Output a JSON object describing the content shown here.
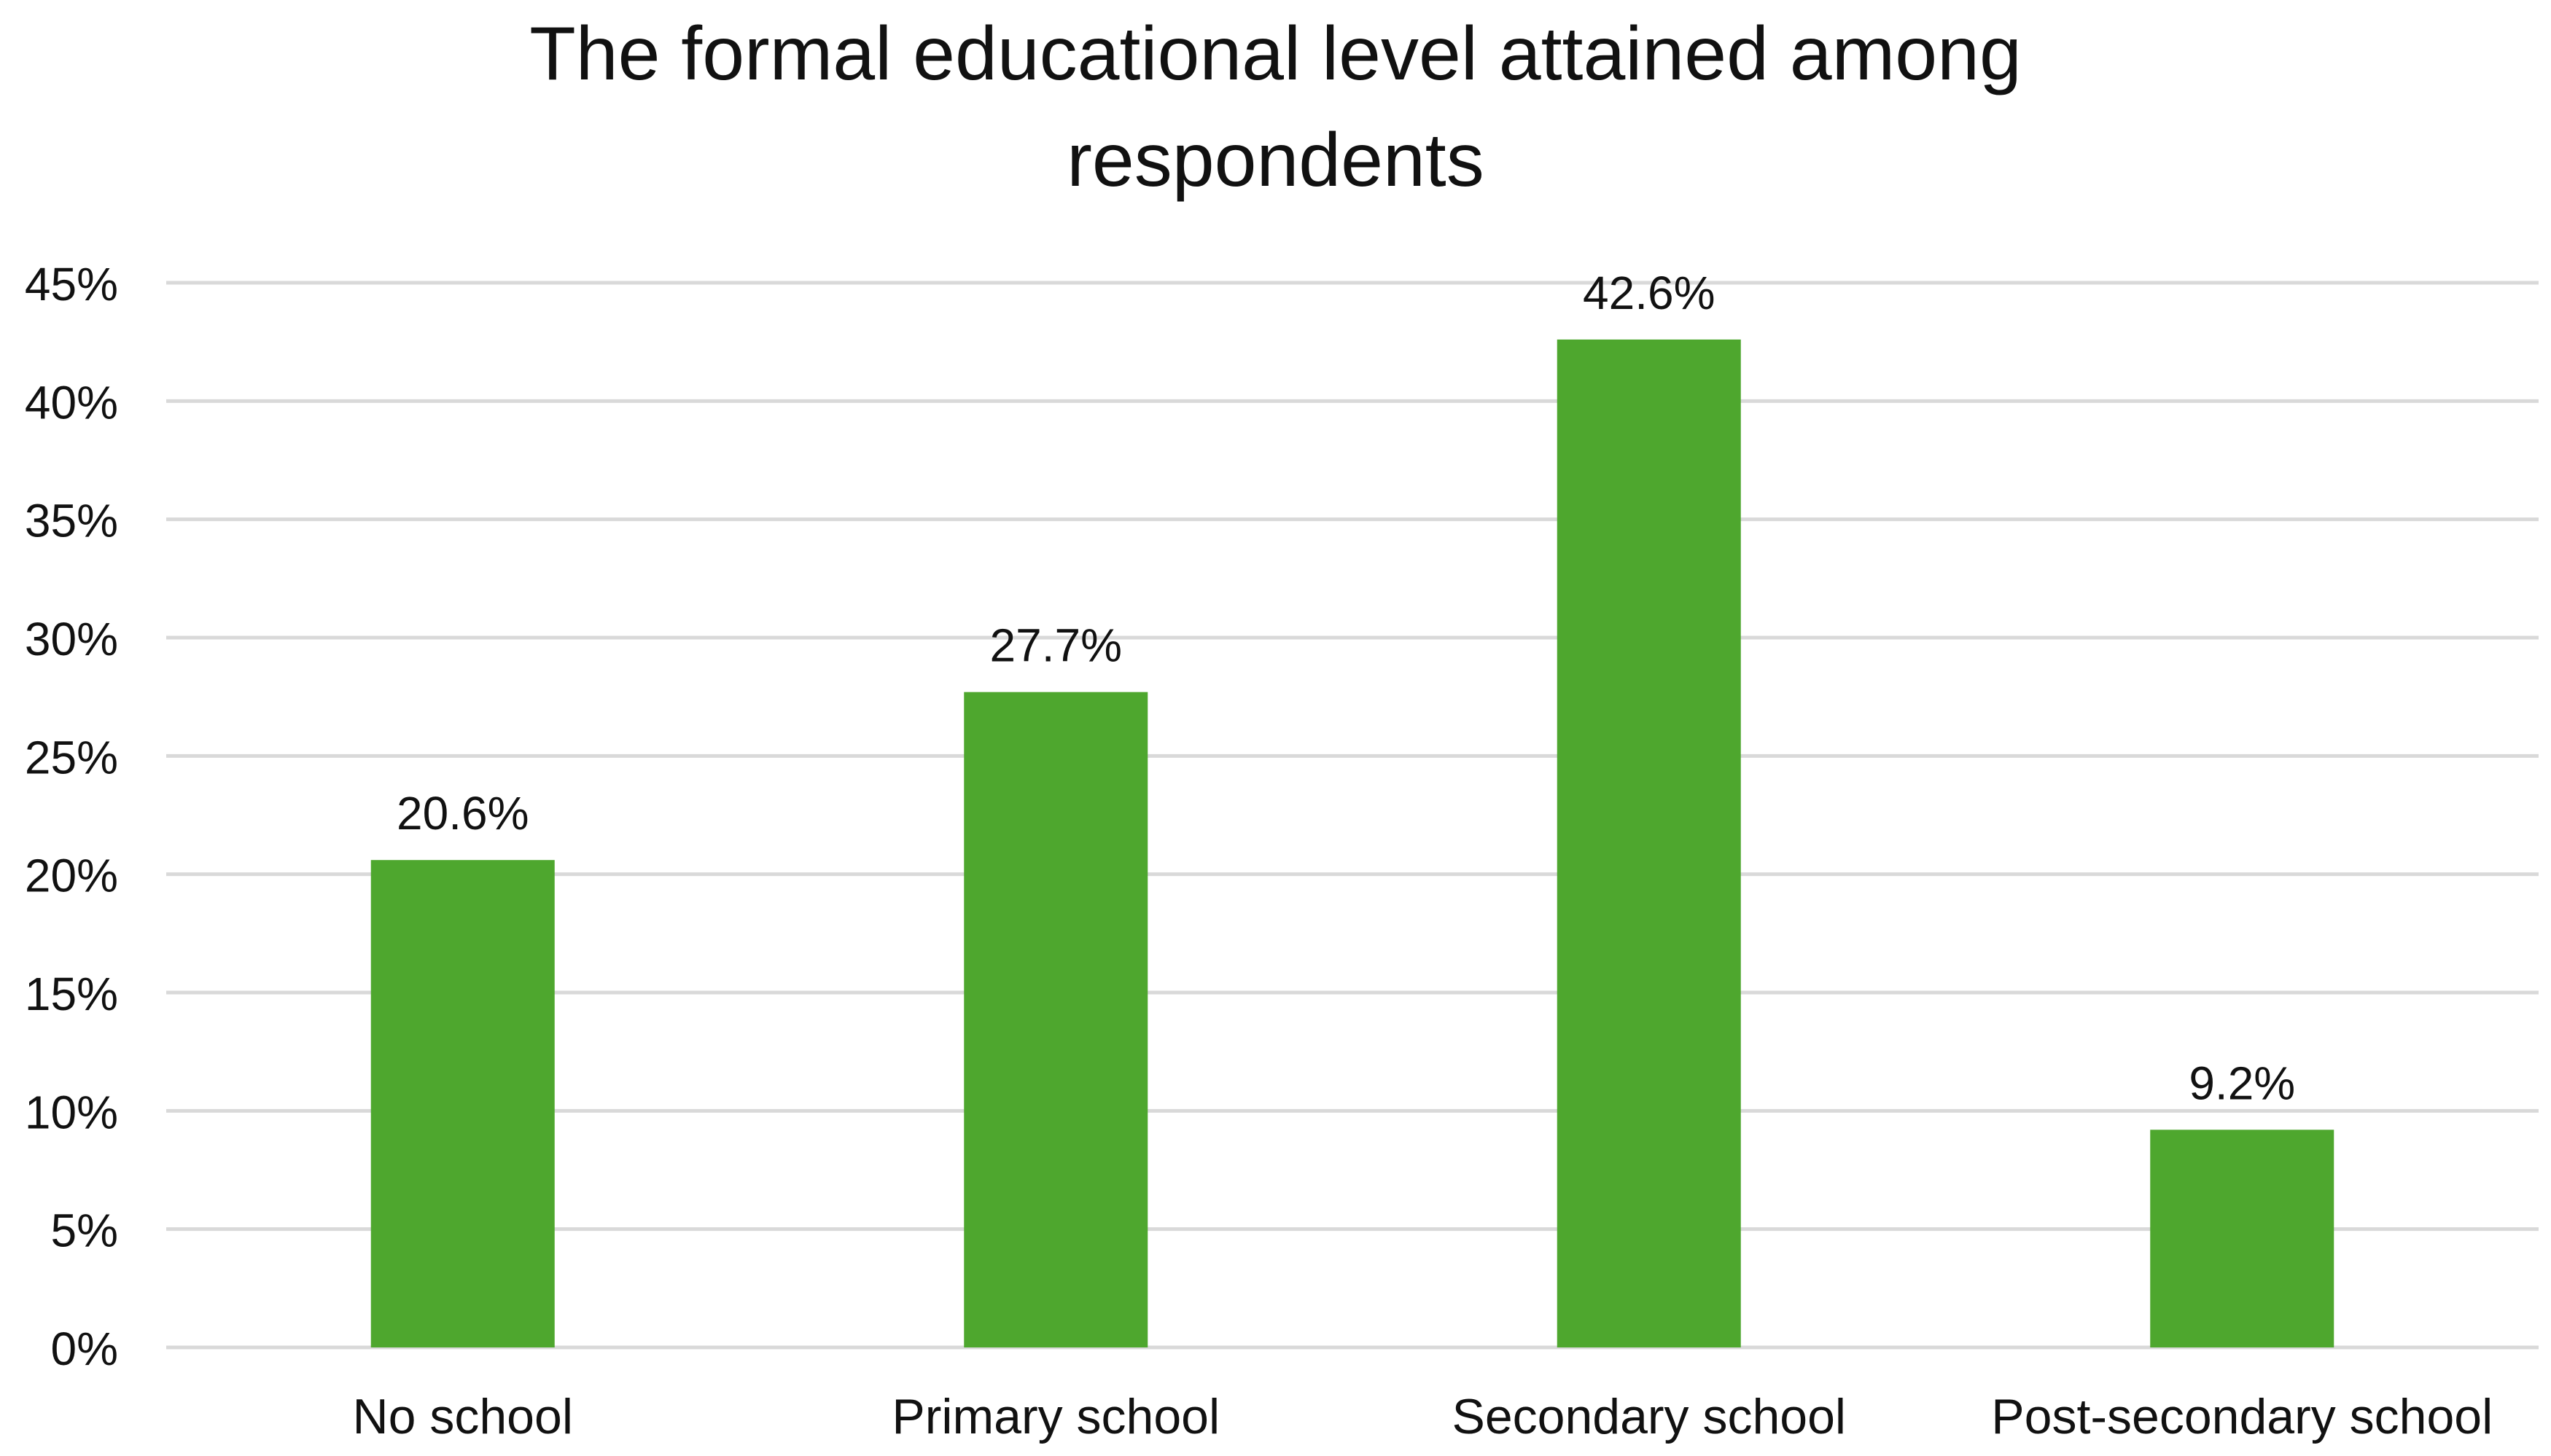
{
  "chart_data": {
    "type": "bar",
    "title_lines": [
      "The formal educational level attained among",
      "respondents"
    ],
    "categories": [
      "No school",
      "Primary school",
      "Secondary school",
      "Post-secondary school"
    ],
    "values": [
      20.6,
      27.7,
      42.6,
      9.2
    ],
    "value_labels": [
      "20.6%",
      "27.7%",
      "42.6%",
      "9.2%"
    ],
    "y_ticks": [
      0,
      5,
      10,
      15,
      20,
      25,
      30,
      35,
      40,
      45
    ],
    "y_tick_labels": [
      "0%",
      "5%",
      "10%",
      "15%",
      "20%",
      "25%",
      "30%",
      "35%",
      "40%",
      "45%"
    ],
    "ylim": [
      0,
      45
    ],
    "grid": true,
    "legend": "none",
    "colors": {
      "bar": "#4ea72e",
      "grid": "#d9d9d9",
      "text": "#111111"
    }
  }
}
